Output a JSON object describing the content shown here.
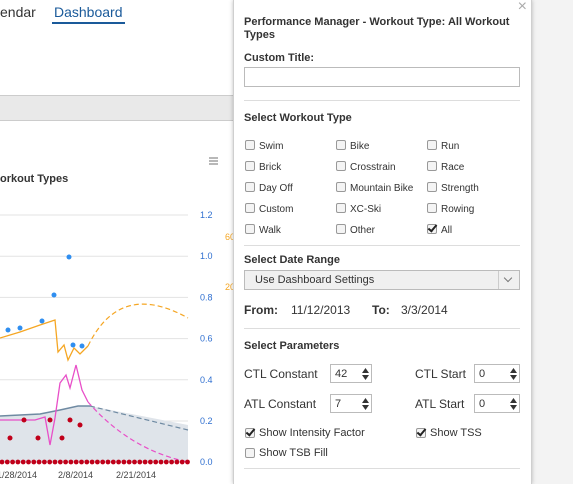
{
  "nav": {
    "items": [
      "endar",
      "Dashboard"
    ]
  },
  "chart": {
    "title": "orkout Types",
    "right_ticks": [
      "1.2",
      "1.0",
      "0.8",
      "0.6",
      "0.4",
      "0.2",
      "0.0"
    ],
    "orange_ticks": [
      "60",
      "20"
    ],
    "x_labels": [
      "1/28/2014",
      "2/8/2014",
      "2/21/2014"
    ]
  },
  "panel": {
    "title": "Performance Manager - Workout Type: All Workout Types",
    "custom_title_label": "Custom Title:",
    "workout_type": {
      "heading": "Select Workout Type",
      "options": [
        "Swim",
        "Bike",
        "Run",
        "Brick",
        "Crosstrain",
        "Race",
        "Day Off",
        "Mountain Bike",
        "Strength",
        "Custom",
        "XC-Ski",
        "Rowing",
        "Walk",
        "Other",
        "All"
      ],
      "checked": [
        "All"
      ]
    },
    "date_range": {
      "heading": "Select Date Range",
      "selected": "Use Dashboard Settings",
      "from_label": "From:",
      "from": "11/12/2013",
      "to_label": "To:",
      "to": "3/3/2014"
    },
    "parameters": {
      "heading": "Select Parameters",
      "ctl_constant_label": "CTL Constant",
      "ctl_constant": "42",
      "ctl_start_label": "CTL Start",
      "ctl_start": "0",
      "atl_constant_label": "ATL Constant",
      "atl_constant": "7",
      "atl_start_label": "ATL Start",
      "atl_start": "0",
      "show_intensity_factor": "Show Intensity Factor",
      "show_tss": "Show TSS",
      "show_tsb_fill": "Show TSB Fill"
    }
  }
}
